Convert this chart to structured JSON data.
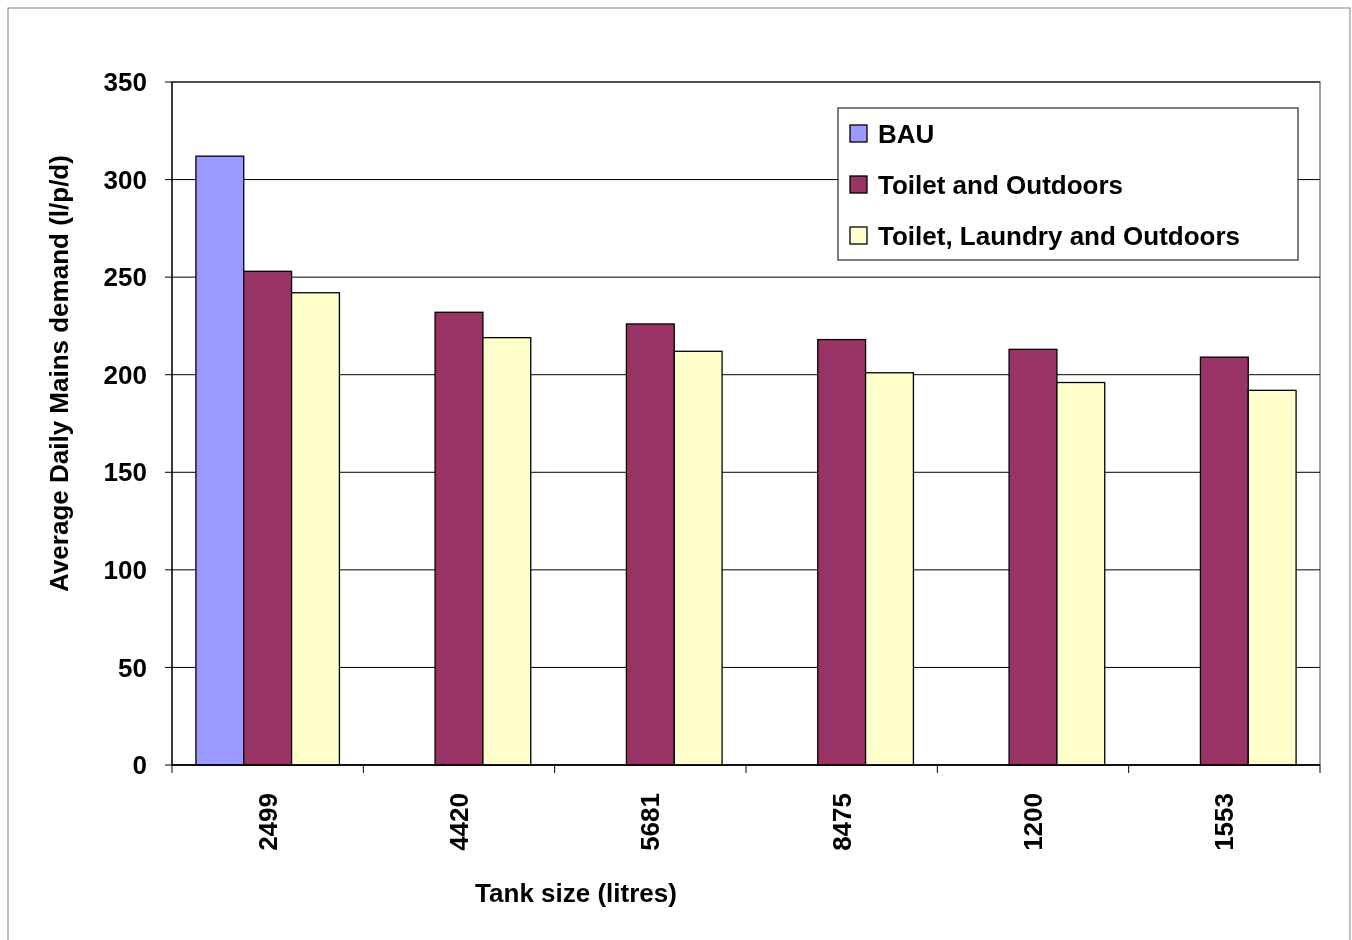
{
  "chart_data": {
    "type": "bar",
    "xlabel": "Tank size (litres)",
    "ylabel": "Average Daily Mains demand (l/p/d)",
    "categories": [
      "2499",
      "4420",
      "5681",
      "8475",
      "1200",
      "1553"
    ],
    "series": [
      {
        "name": "BAU",
        "color": "#9999ff",
        "values": [
          312,
          null,
          null,
          null,
          null,
          null
        ]
      },
      {
        "name": "Toilet and Outdoors",
        "color": "#993366",
        "values": [
          253,
          232,
          226,
          218,
          213,
          209
        ]
      },
      {
        "name": "Toilet, Laundry and Outdoors",
        "color": "#ffffcc",
        "values": [
          242,
          219,
          212,
          201,
          196,
          192
        ]
      }
    ],
    "ylim": [
      0,
      350
    ],
    "yticks": [
      0,
      50,
      100,
      150,
      200,
      250,
      300,
      350
    ],
    "grid": "y",
    "legend": "top right"
  }
}
